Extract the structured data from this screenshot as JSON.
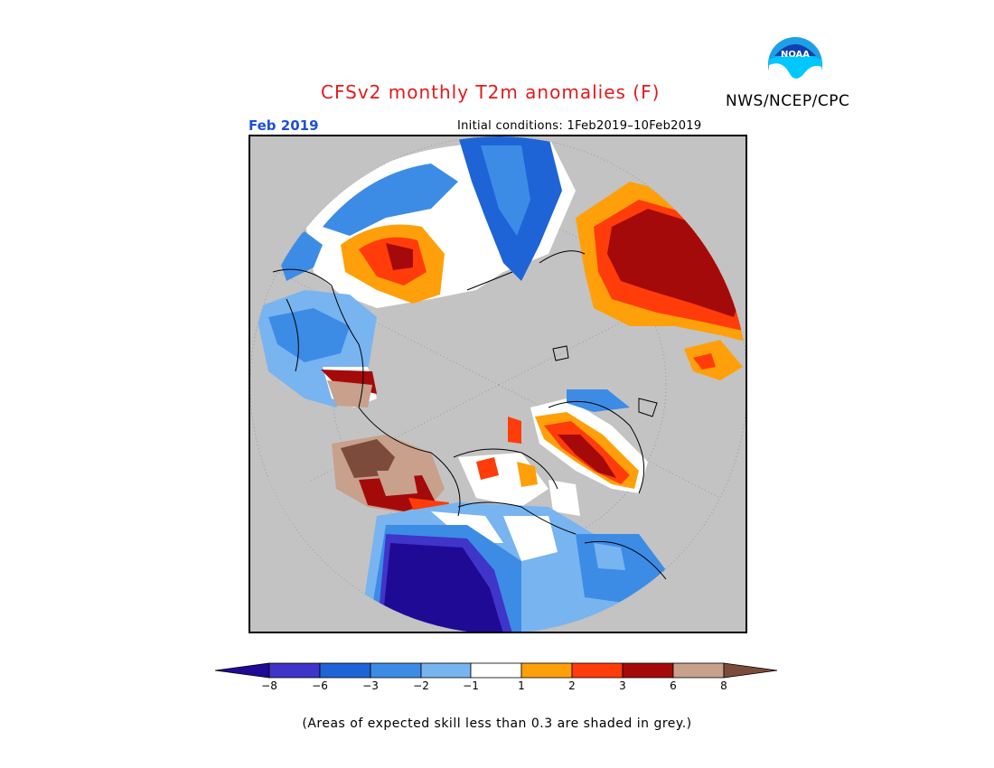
{
  "title": "CFSv2 monthly T2m anomalies (F)",
  "agency": "NWS/NCEP/CPC",
  "logo_text": "NOAA",
  "month": "Feb 2019",
  "initial_conditions": "Initial conditions: 1Feb2019–10Feb2019",
  "footnote": "(Areas of expected skill less than 0.3 are shaded in grey.)",
  "legend": {
    "ticks": [
      "−8",
      "−6",
      "−3",
      "−2",
      "−1",
      "1",
      "2",
      "3",
      "6",
      "8"
    ],
    "colors": [
      "#1f0a96",
      "#3f35c8",
      "#1e64d7",
      "#3c8ce6",
      "#78b4f0",
      "#ffffff",
      "#ffa00a",
      "#ff3c0a",
      "#a50a0a",
      "#c8a08c",
      "#7d4b3c"
    ],
    "skill_mask_color": "#c3c3c3"
  },
  "map": {
    "projection": "north-polar-stereographic",
    "ocean_land_masked_color": "#c3c3c3",
    "coastline_color": "#000000"
  }
}
